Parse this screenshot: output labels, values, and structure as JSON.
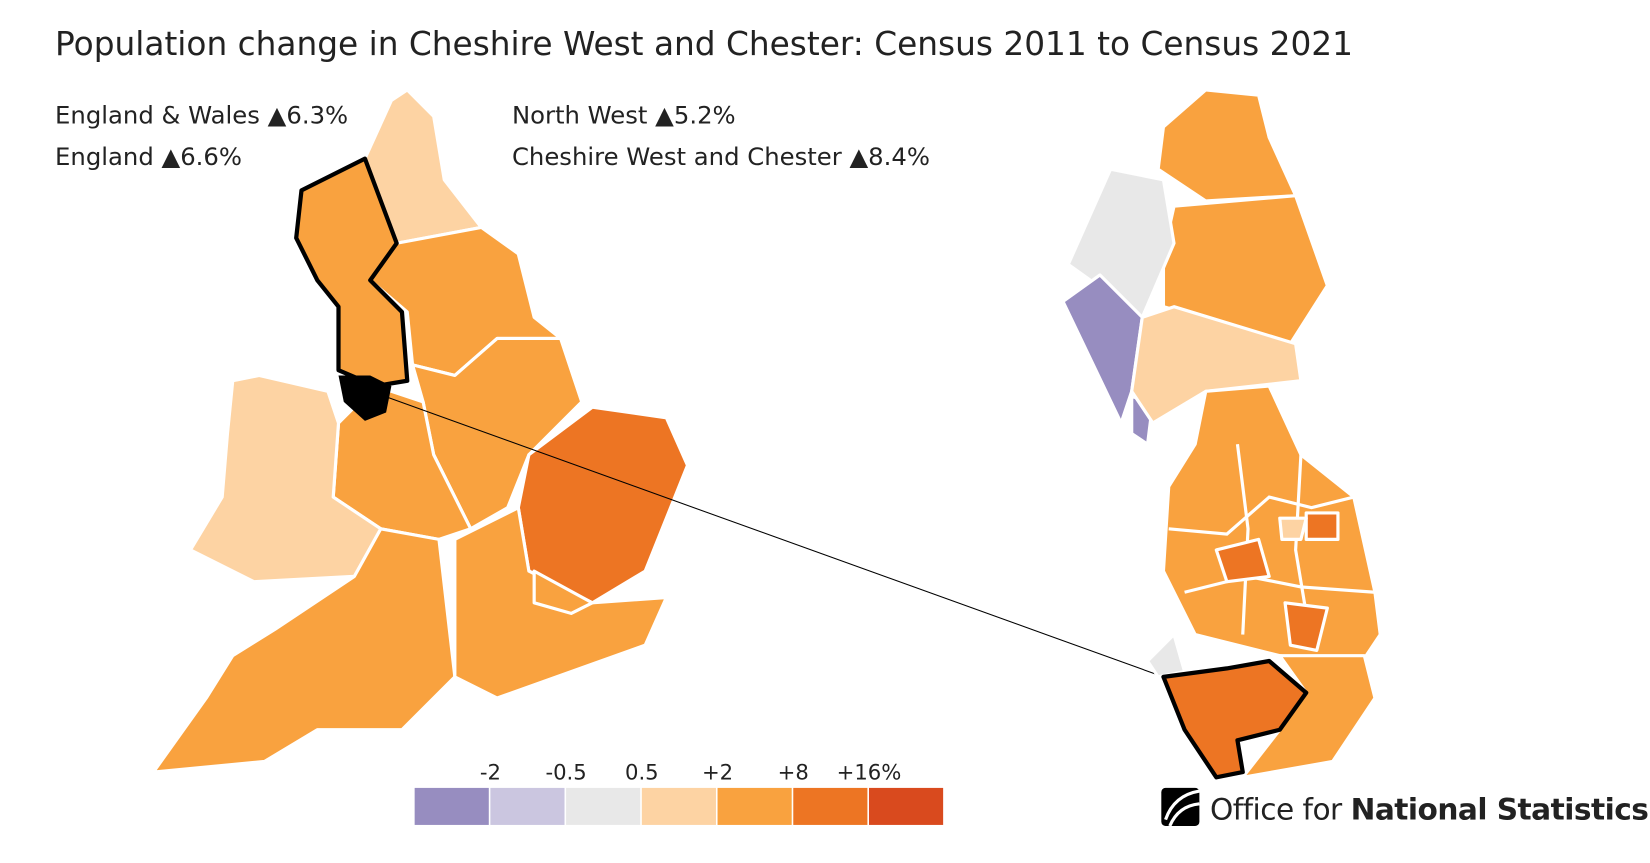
{
  "title": "Population change in Cheshire West and Chester: Census 2011 to Census 2021",
  "stats": [
    {
      "label": "England & Wales",
      "change": "▲6.3%"
    },
    {
      "label": "England",
      "change": "▲6.6%"
    },
    {
      "label": "North West",
      "change": "▲5.2%"
    },
    {
      "label": "Cheshire West and Chester",
      "change": "▲8.4%"
    }
  ],
  "legend": {
    "ticks": [
      "-2",
      "-0.5",
      "0.5",
      "+2",
      "+8",
      "+16%"
    ],
    "colors": [
      "#978dc0",
      "#cbc6e0",
      "#e8e8e8",
      "#fdd3a3",
      "#f9a23f",
      "#ed7523",
      "#d94a1e"
    ]
  },
  "logo": {
    "prefix": "Office for",
    "name": "National Statistics"
  }
}
